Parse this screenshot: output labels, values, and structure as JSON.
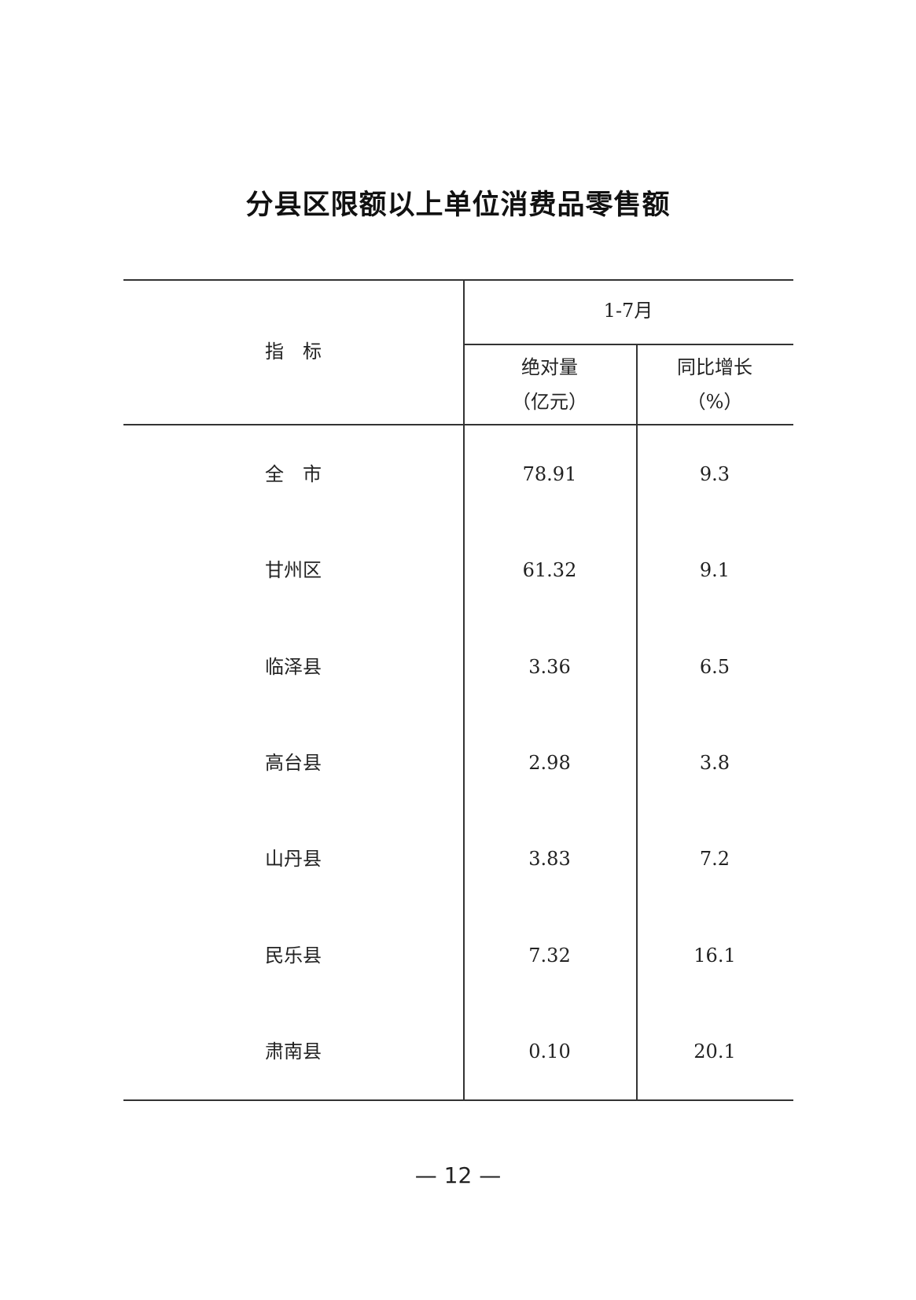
{
  "title": "分县区限额以上单位消费品零售额",
  "table": {
    "header": {
      "indicator": "指　标",
      "period": "1-7月",
      "col1_line1": "绝对量",
      "col1_line2": "（亿元）",
      "col2_line1": "同比增长",
      "col2_line2": "（%）"
    },
    "rows": [
      {
        "name": "全　市",
        "value": "78.91",
        "growth": "9.3"
      },
      {
        "name": "甘州区",
        "value": "61.32",
        "growth": "9.1"
      },
      {
        "name": "临泽县",
        "value": "3.36",
        "growth": "6.5"
      },
      {
        "name": "高台县",
        "value": "2.98",
        "growth": "3.8"
      },
      {
        "name": "山丹县",
        "value": "3.83",
        "growth": "7.2"
      },
      {
        "name": "民乐县",
        "value": "7.32",
        "growth": "16.1"
      },
      {
        "name": "肃南县",
        "value": "0.10",
        "growth": "20.1"
      }
    ]
  },
  "page_number": "— 12 —"
}
